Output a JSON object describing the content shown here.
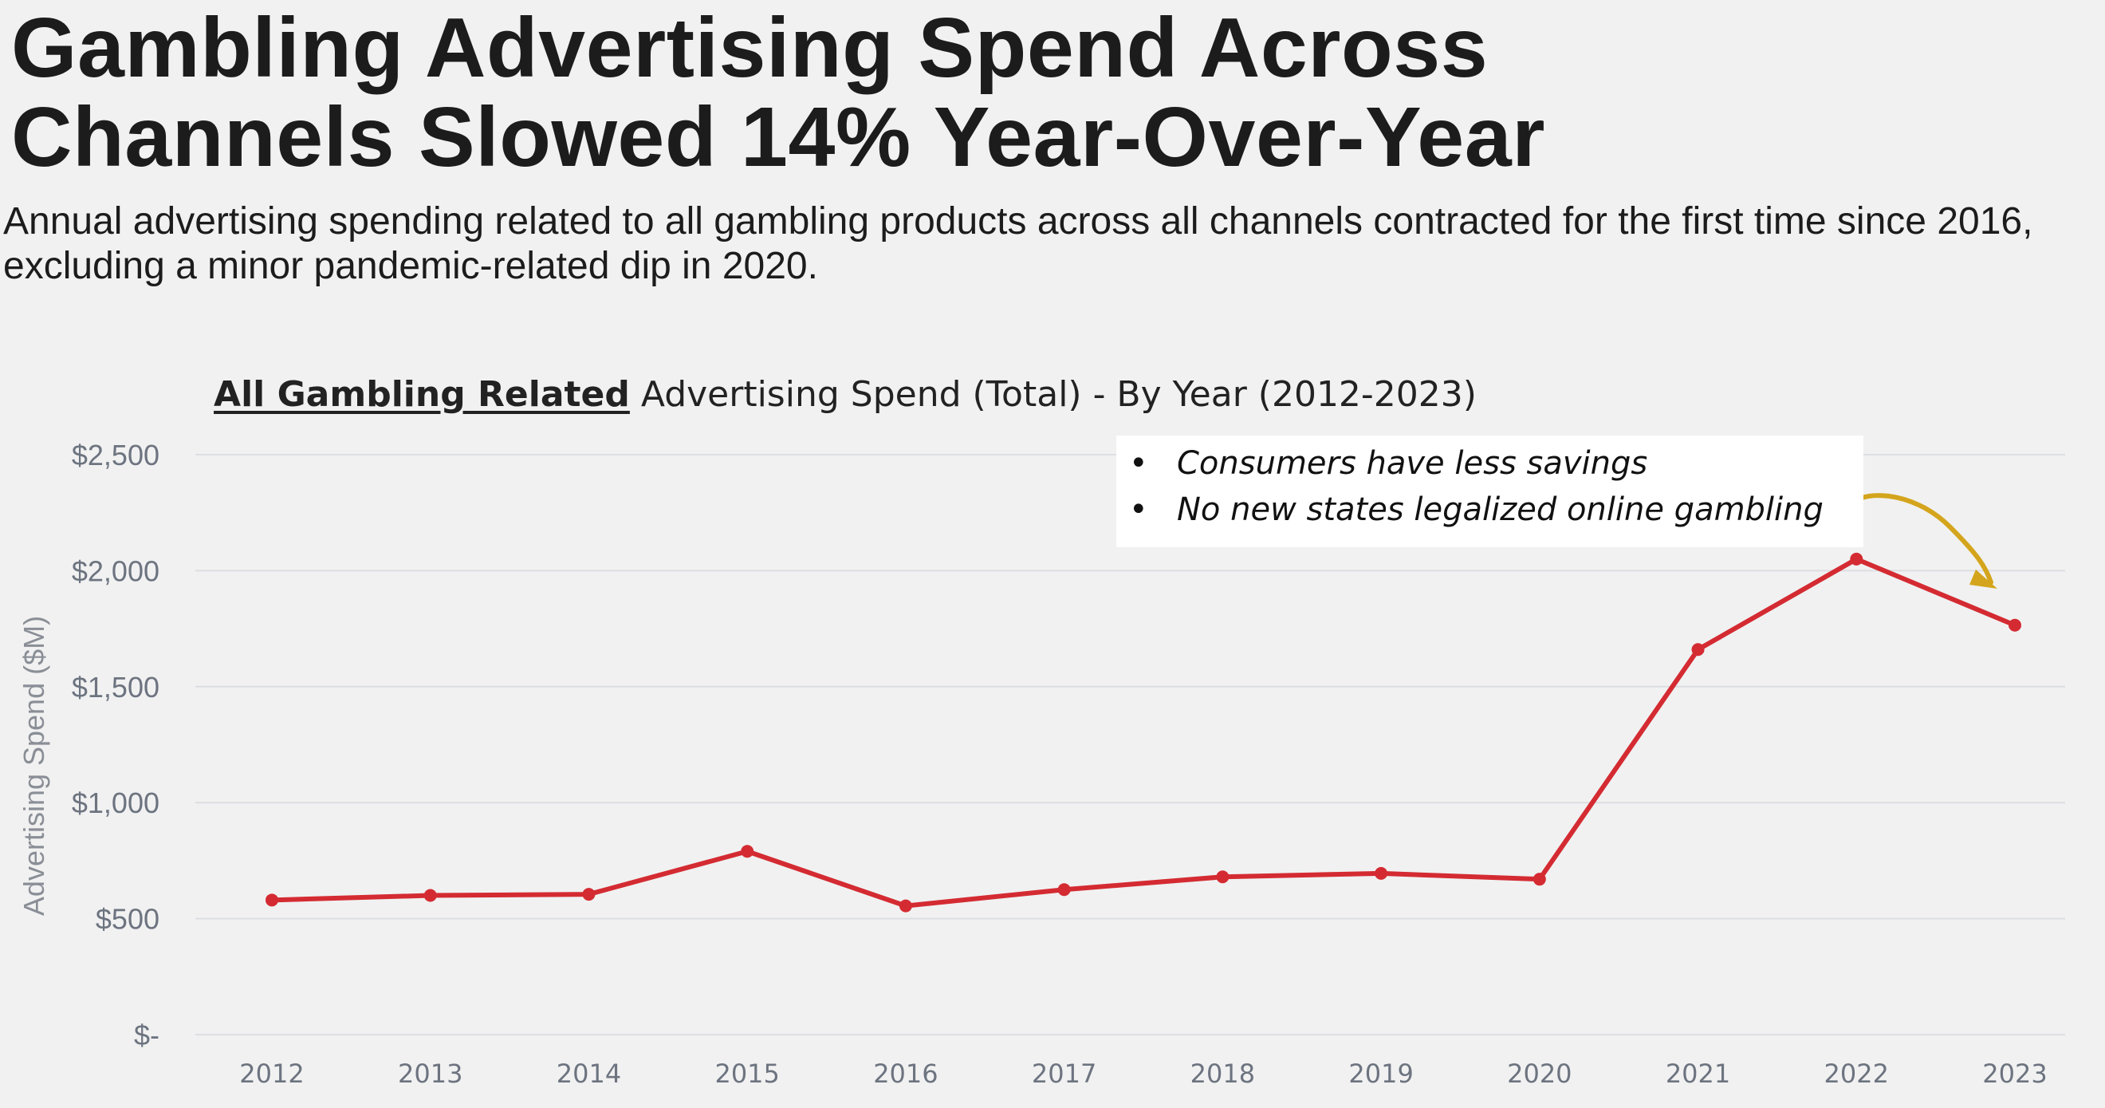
{
  "headline": {
    "line1": "Gambling Advertising Spend Across",
    "line2": "Channels Slowed 14% Year-Over-Year"
  },
  "subheadline": "Annual advertising spending related to all gambling products across all channels contracted for the first time since 2016, excluding a minor pandemic-related dip in 2020.",
  "callout": {
    "bullets": [
      "Consumers have less savings",
      "No new states legalized online gambling"
    ],
    "arrow_color": "#d4a51c"
  },
  "colors": {
    "line": "#d42b32",
    "grid": "#dcdee3",
    "tick_text": "#6d7480",
    "ylabel_text": "#8a8e96"
  },
  "chart_data": {
    "type": "line",
    "title_emphasis": "All Gambling Related",
    "title_rest": " Advertising Spend (Total)  - By Year (2012-2023)",
    "xlabel": "",
    "ylabel": "Advertising Spend ($M)",
    "categories": [
      "2012",
      "2013",
      "2014",
      "2015",
      "2016",
      "2017",
      "2018",
      "2019",
      "2020",
      "2021",
      "2022",
      "2023"
    ],
    "series": [
      {
        "values": [
          580,
          600,
          605,
          790,
          555,
          625,
          680,
          695,
          670,
          1660,
          2050,
          1765
        ]
      }
    ],
    "ylim": [
      0,
      2500
    ],
    "yticks": [
      0,
      500,
      1000,
      1500,
      2000,
      2500
    ],
    "ytick_labels": [
      "$-",
      "$500",
      "$1,000",
      "$1,500",
      "$2,000",
      "$2,500"
    ],
    "grid": true,
    "legend": "none"
  }
}
